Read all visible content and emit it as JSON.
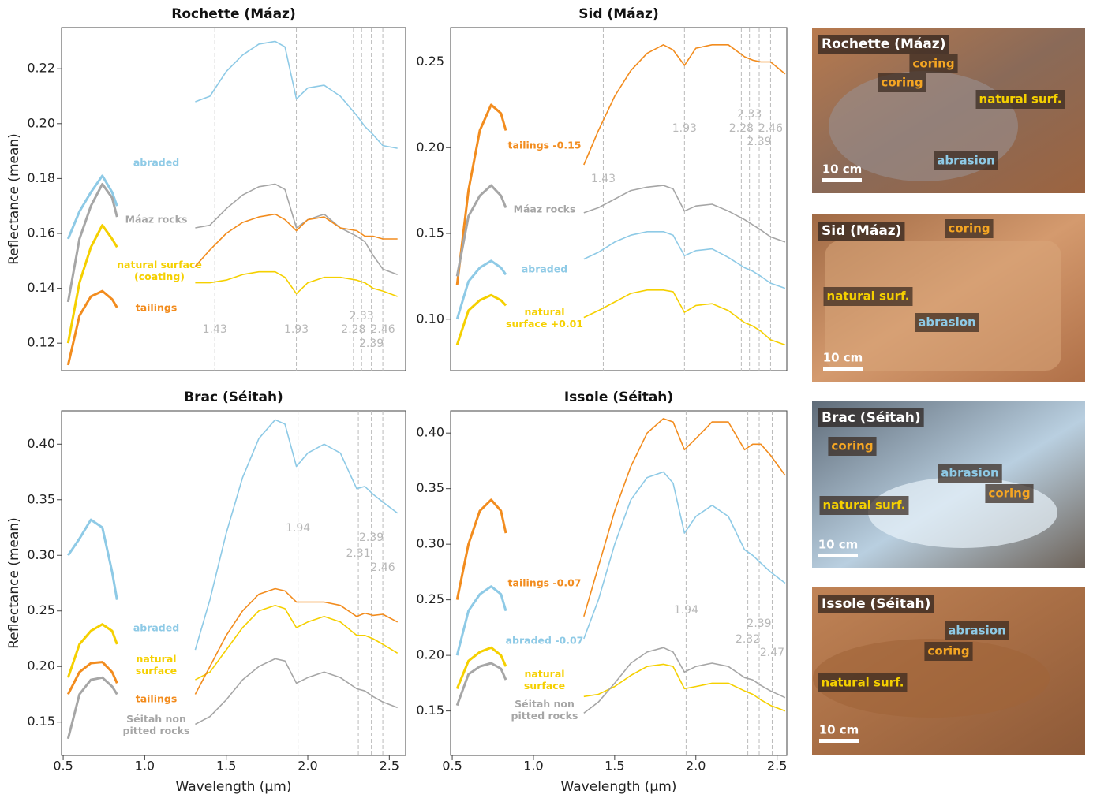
{
  "chart_data": [
    {
      "type": "line",
      "title": "Rochette (Máaz)",
      "y_label": "Reflectance (mean)",
      "xlim": [
        0.49,
        2.6
      ],
      "ylim": [
        0.11,
        0.235
      ],
      "yticks": [
        0.12,
        0.14,
        0.16,
        0.18,
        {
          "value": 0.2,
          "label": "0.20"
        },
        0.22
      ],
      "bands": [
        1.43,
        1.93,
        2.28,
        2.33,
        2.39,
        2.46
      ],
      "x": [
        0.53,
        0.6,
        0.67,
        0.74,
        0.8,
        0.83,
        1.07,
        1.31,
        1.4,
        1.5,
        1.6,
        1.7,
        1.8,
        1.86,
        1.93,
        2.0,
        2.1,
        2.2,
        2.3,
        2.35,
        2.4,
        2.46,
        2.55
      ],
      "series": [
        {
          "name": "abraded",
          "color": "#8ecae6",
          "values": [
            0.158,
            0.168,
            0.175,
            0.181,
            0.175,
            0.17,
            null,
            0.208,
            0.21,
            0.219,
            0.225,
            0.229,
            0.23,
            0.228,
            0.209,
            0.213,
            0.214,
            0.21,
            0.203,
            0.199,
            0.196,
            0.192,
            0.191
          ]
        },
        {
          "name": "Máaz rocks",
          "color": "#a6a6a6",
          "values": [
            0.135,
            0.158,
            0.17,
            0.178,
            0.173,
            0.166,
            null,
            0.162,
            0.163,
            0.169,
            0.174,
            0.177,
            0.178,
            0.176,
            0.162,
            0.165,
            0.167,
            0.162,
            0.159,
            0.157,
            0.152,
            0.147,
            0.145
          ]
        },
        {
          "name": "natural surface\n(coating)",
          "color": "#f5d000",
          "values": [
            0.12,
            0.142,
            0.155,
            0.163,
            0.158,
            0.155,
            null,
            0.142,
            0.142,
            0.143,
            0.145,
            0.146,
            0.146,
            0.144,
            0.138,
            0.142,
            0.144,
            0.144,
            0.143,
            0.142,
            0.14,
            0.139,
            0.137
          ]
        },
        {
          "name": "tailings",
          "color": "#f28c1e",
          "values": [
            0.112,
            0.13,
            0.137,
            0.139,
            0.136,
            0.133,
            null,
            0.148,
            0.154,
            0.16,
            0.164,
            0.166,
            0.167,
            0.165,
            0.161,
            0.165,
            0.166,
            0.162,
            0.161,
            0.159,
            0.159,
            0.158,
            0.158
          ]
        }
      ]
    },
    {
      "type": "line",
      "title": "Sid (Máaz)",
      "xlim": [
        0.49,
        2.56
      ],
      "ylim": [
        0.07,
        0.27
      ],
      "yticks": [
        {
          "value": 0.1,
          "label": "0.10"
        },
        0.15,
        {
          "value": 0.2,
          "label": "0.20"
        },
        0.25
      ],
      "bands": [
        1.43,
        1.93,
        2.28,
        2.33,
        2.39,
        2.46
      ],
      "x": [
        0.53,
        0.6,
        0.67,
        0.74,
        0.8,
        0.83,
        1.07,
        1.31,
        1.4,
        1.5,
        1.6,
        1.7,
        1.8,
        1.86,
        1.93,
        2.0,
        2.1,
        2.2,
        2.3,
        2.35,
        2.4,
        2.46,
        2.55
      ],
      "series": [
        {
          "name": "tailings -0.15",
          "color": "#f28c1e",
          "values": [
            0.12,
            0.175,
            0.21,
            0.225,
            0.22,
            0.21,
            null,
            0.19,
            0.21,
            0.23,
            0.245,
            0.255,
            0.26,
            0.257,
            0.248,
            0.258,
            0.26,
            0.26,
            0.253,
            0.251,
            0.25,
            0.25,
            0.243
          ]
        },
        {
          "name": "Máaz rocks",
          "color": "#a6a6a6",
          "values": [
            0.125,
            0.16,
            0.172,
            0.178,
            0.172,
            0.165,
            null,
            0.162,
            0.165,
            0.17,
            0.175,
            0.177,
            0.178,
            0.176,
            0.163,
            0.166,
            0.167,
            0.163,
            0.158,
            0.155,
            0.152,
            0.148,
            0.145
          ]
        },
        {
          "name": "abraded",
          "color": "#8ecae6",
          "values": [
            0.1,
            0.122,
            0.13,
            0.134,
            0.13,
            0.126,
            null,
            0.135,
            0.139,
            0.145,
            0.149,
            0.151,
            0.151,
            0.149,
            0.137,
            0.14,
            0.141,
            0.136,
            0.13,
            0.128,
            0.125,
            0.121,
            0.118
          ]
        },
        {
          "name": "natural\nsurface +0.01",
          "color": "#f5d000",
          "values": [
            0.085,
            0.105,
            0.111,
            0.114,
            0.111,
            0.108,
            null,
            0.101,
            0.105,
            0.11,
            0.115,
            0.117,
            0.117,
            0.116,
            0.104,
            0.108,
            0.109,
            0.105,
            0.098,
            0.096,
            0.093,
            0.088,
            0.085
          ]
        }
      ]
    },
    {
      "type": "line",
      "title": "Brac (Séitah)",
      "y_label": "Reflectance (mean)",
      "x_label": "Wavelength (µm)",
      "xlim": [
        0.49,
        2.6
      ],
      "ylim": [
        0.12,
        0.43
      ],
      "xticks": [
        0.5,
        {
          "value": 1,
          "label": "1.0"
        },
        1.5,
        {
          "value": 2,
          "label": "2.0"
        },
        2.5
      ],
      "yticks": [
        0.15,
        {
          "value": 0.2,
          "label": "0.20"
        },
        0.25,
        {
          "value": 0.3,
          "label": "0.30"
        },
        0.35,
        {
          "value": 0.4,
          "label": "0.40"
        }
      ],
      "bands": [
        1.94,
        2.31,
        2.39,
        2.46
      ],
      "x": [
        0.53,
        0.6,
        0.67,
        0.74,
        0.8,
        0.83,
        1.07,
        1.31,
        1.4,
        1.5,
        1.6,
        1.7,
        1.8,
        1.86,
        1.93,
        2.0,
        2.1,
        2.2,
        2.3,
        2.35,
        2.4,
        2.46,
        2.55
      ],
      "series": [
        {
          "name": "abraded",
          "color": "#8ecae6",
          "values": [
            0.3,
            0.315,
            0.332,
            0.325,
            0.285,
            0.26,
            null,
            0.215,
            0.26,
            0.32,
            0.37,
            0.405,
            0.422,
            0.418,
            0.38,
            0.392,
            0.4,
            0.392,
            0.36,
            0.362,
            0.355,
            0.348,
            0.338
          ]
        },
        {
          "name": "natural\nsurface",
          "color": "#f5d000",
          "values": [
            0.19,
            0.22,
            0.232,
            0.238,
            0.232,
            0.22,
            null,
            0.188,
            0.195,
            0.215,
            0.235,
            0.25,
            0.255,
            0.252,
            0.235,
            0.24,
            0.245,
            0.24,
            0.228,
            0.228,
            0.225,
            0.22,
            0.212
          ]
        },
        {
          "name": "tailings",
          "color": "#f28c1e",
          "values": [
            0.175,
            0.195,
            0.203,
            0.204,
            0.195,
            0.185,
            null,
            0.175,
            0.2,
            0.228,
            0.25,
            0.265,
            0.27,
            0.268,
            0.258,
            0.258,
            0.258,
            0.255,
            0.245,
            0.248,
            0.246,
            0.247,
            0.24
          ]
        },
        {
          "name": "Séitah non\npitted rocks",
          "color": "#a6a6a6",
          "values": [
            0.135,
            0.175,
            0.188,
            0.19,
            0.182,
            0.175,
            null,
            0.148,
            0.155,
            0.17,
            0.188,
            0.2,
            0.207,
            0.205,
            0.185,
            0.19,
            0.195,
            0.19,
            0.18,
            0.178,
            0.173,
            0.168,
            0.163
          ]
        }
      ]
    },
    {
      "type": "line",
      "title": "Issole (Séitah)",
      "x_label": "Wavelength (µm)",
      "xlim": [
        0.49,
        2.56
      ],
      "ylim": [
        0.11,
        0.42
      ],
      "xticks": [
        0.5,
        {
          "value": 1,
          "label": "1.0"
        },
        1.5,
        {
          "value": 2,
          "label": "2.0"
        },
        2.5
      ],
      "yticks": [
        0.15,
        {
          "value": 0.2,
          "label": "0.20"
        },
        0.25,
        {
          "value": 0.3,
          "label": "0.30"
        },
        0.35,
        {
          "value": 0.4,
          "label": "0.40"
        }
      ],
      "bands": [
        1.94,
        2.32,
        2.39,
        2.47
      ],
      "x": [
        0.53,
        0.6,
        0.67,
        0.74,
        0.8,
        0.83,
        1.07,
        1.31,
        1.4,
        1.5,
        1.6,
        1.7,
        1.8,
        1.86,
        1.93,
        2.0,
        2.1,
        2.2,
        2.3,
        2.35,
        2.4,
        2.46,
        2.55
      ],
      "series": [
        {
          "name": "tailings -0.07",
          "color": "#f28c1e",
          "values": [
            0.25,
            0.3,
            0.33,
            0.34,
            0.33,
            0.31,
            null,
            0.235,
            0.28,
            0.33,
            0.37,
            0.4,
            0.413,
            0.41,
            0.385,
            0.395,
            0.41,
            0.41,
            0.385,
            0.39,
            0.39,
            0.38,
            0.362
          ]
        },
        {
          "name": "abraded -0.07",
          "color": "#8ecae6",
          "values": [
            0.2,
            0.24,
            0.255,
            0.262,
            0.255,
            0.24,
            null,
            0.215,
            0.25,
            0.3,
            0.34,
            0.36,
            0.365,
            0.355,
            0.31,
            0.325,
            0.335,
            0.325,
            0.295,
            0.29,
            0.283,
            0.275,
            0.265
          ]
        },
        {
          "name": "natural\nsurface",
          "color": "#f5d000",
          "values": [
            0.17,
            0.195,
            0.203,
            0.207,
            0.2,
            0.19,
            null,
            0.163,
            0.165,
            0.172,
            0.182,
            0.19,
            0.192,
            0.19,
            0.17,
            0.172,
            0.175,
            0.175,
            0.168,
            0.165,
            0.16,
            0.155,
            0.15
          ]
        },
        {
          "name": "Séitah non\npitted rocks",
          "color": "#a6a6a6",
          "values": [
            0.155,
            0.183,
            0.19,
            0.193,
            0.188,
            0.178,
            null,
            0.148,
            0.158,
            0.175,
            0.193,
            0.203,
            0.207,
            0.203,
            0.185,
            0.19,
            0.193,
            0.19,
            0.18,
            0.178,
            0.173,
            0.168,
            0.162
          ]
        }
      ]
    }
  ],
  "photos": [
    {
      "title": "Rochette (Máaz)",
      "labels": [
        {
          "text": "coring",
          "color": "#f5a623"
        },
        {
          "text": "coring",
          "color": "#f5a623"
        },
        {
          "text": "natural surf.",
          "color": "#f5d000"
        },
        {
          "text": "abrasion",
          "color": "#8ecae6"
        },
        {
          "text": "10 cm",
          "color": "#ffffff"
        }
      ]
    },
    {
      "title": "Sid (Máaz)",
      "labels": [
        {
          "text": "coring",
          "color": "#f5a623"
        },
        {
          "text": "natural surf.",
          "color": "#f5d000"
        },
        {
          "text": "abrasion",
          "color": "#8ecae6"
        },
        {
          "text": "10 cm",
          "color": "#ffffff"
        }
      ]
    },
    {
      "title": "Brac (Séitah)",
      "labels": [
        {
          "text": "coring",
          "color": "#f5a623"
        },
        {
          "text": "abrasion",
          "color": "#8ecae6"
        },
        {
          "text": "coring",
          "color": "#f5a623"
        },
        {
          "text": "natural surf.",
          "color": "#f5d000"
        },
        {
          "text": "10 cm",
          "color": "#ffffff"
        }
      ]
    },
    {
      "title": "Issole (Séitah)",
      "labels": [
        {
          "text": "abrasion",
          "color": "#8ecae6"
        },
        {
          "text": "coring",
          "color": "#f5a623"
        },
        {
          "text": "natural surf.",
          "color": "#f5d000"
        },
        {
          "text": "10 cm",
          "color": "#ffffff"
        }
      ]
    }
  ]
}
